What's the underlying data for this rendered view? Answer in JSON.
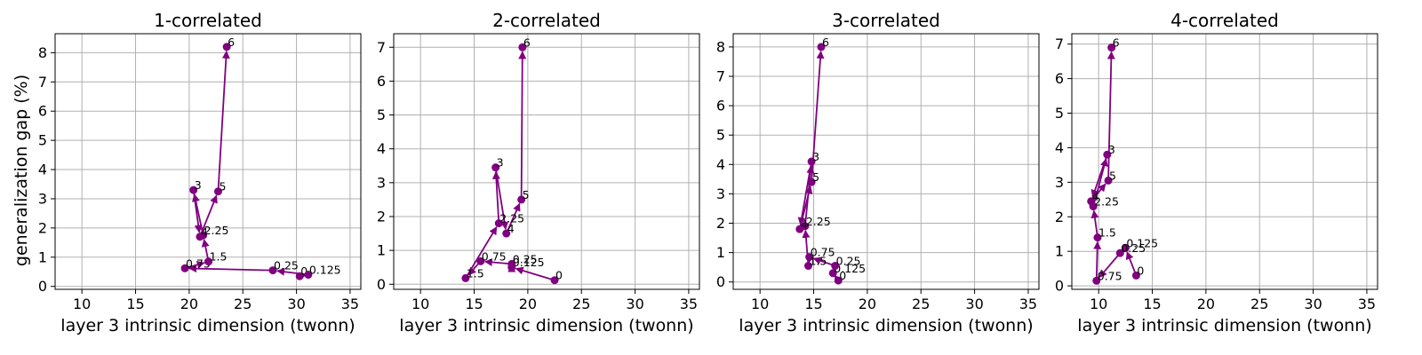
{
  "figure": {
    "ylabel": "generalization gap (%)",
    "xlabel": "layer 3 intrinsic dimension (twonn)"
  },
  "chart_data": [
    {
      "type": "line",
      "title": "1-correlated",
      "xlabel": "layer 3 intrinsic dimension (twonn)",
      "ylabel": "generalization gap (%)",
      "xlim": [
        7.5,
        36
      ],
      "ylim": [
        -0.1,
        8.65
      ],
      "xticks": [
        10,
        15,
        20,
        25,
        30,
        35
      ],
      "yticks": [
        0,
        1,
        2,
        3,
        4,
        5,
        6,
        7,
        8
      ],
      "grid": true,
      "color": "#800080",
      "points": [
        {
          "label": "0",
          "x": 30.3,
          "y": 0.35
        },
        {
          "label": "0.125",
          "x": 31.1,
          "y": 0.4
        },
        {
          "label": "0.25",
          "x": 27.8,
          "y": 0.55
        },
        {
          "label": "0.75",
          "x": 19.6,
          "y": 0.62
        },
        {
          "label": "1.5",
          "x": 21.8,
          "y": 0.85
        },
        {
          "label": "2.25",
          "x": 21.3,
          "y": 1.75
        },
        {
          "label": "3",
          "x": 20.4,
          "y": 3.3
        },
        {
          "label": "4",
          "x": 21.0,
          "y": 1.7
        },
        {
          "label": "5",
          "x": 22.7,
          "y": 3.25
        },
        {
          "label": "6",
          "x": 23.5,
          "y": 8.2
        }
      ]
    },
    {
      "type": "line",
      "title": "2-correlated",
      "xlabel": "layer 3 intrinsic dimension (twonn)",
      "ylabel": "",
      "xlim": [
        7.5,
        36
      ],
      "ylim": [
        -0.15,
        7.4
      ],
      "xticks": [
        10,
        15,
        20,
        25,
        30,
        35
      ],
      "yticks": [
        0,
        1,
        2,
        3,
        4,
        5,
        6,
        7
      ],
      "grid": true,
      "color": "#800080",
      "points": [
        {
          "label": "0",
          "x": 22.5,
          "y": 0.12
        },
        {
          "label": "0.125",
          "x": 18.5,
          "y": 0.5
        },
        {
          "label": "0.25",
          "x": 18.5,
          "y": 0.6
        },
        {
          "label": "0.75",
          "x": 15.6,
          "y": 0.68
        },
        {
          "label": "1.5",
          "x": 14.2,
          "y": 0.18
        },
        {
          "label": "2.25",
          "x": 17.3,
          "y": 1.8
        },
        {
          "label": "3",
          "x": 17.0,
          "y": 3.45
        },
        {
          "label": "4",
          "x": 18.0,
          "y": 1.5
        },
        {
          "label": "5",
          "x": 19.4,
          "y": 2.5
        },
        {
          "label": "6",
          "x": 19.5,
          "y": 7.0
        }
      ]
    },
    {
      "type": "line",
      "title": "3-correlated",
      "xlabel": "layer 3 intrinsic dimension (twonn)",
      "ylabel": "",
      "xlim": [
        7.5,
        36
      ],
      "ylim": [
        -0.25,
        8.45
      ],
      "xticks": [
        10,
        15,
        20,
        25,
        30,
        35
      ],
      "yticks": [
        0,
        1,
        2,
        3,
        4,
        5,
        6,
        7,
        8
      ],
      "grid": true,
      "color": "#800080",
      "points": [
        {
          "label": "0",
          "x": 17.3,
          "y": 0.05
        },
        {
          "label": "0.125",
          "x": 16.8,
          "y": 0.3
        },
        {
          "label": "0.25",
          "x": 17.0,
          "y": 0.55
        },
        {
          "label": "0.75",
          "x": 14.6,
          "y": 0.85
        },
        {
          "label": "1.5",
          "x": 14.5,
          "y": 0.55
        },
        {
          "label": "2.25",
          "x": 14.2,
          "y": 1.9
        },
        {
          "label": "3",
          "x": 14.8,
          "y": 4.1
        },
        {
          "label": "4",
          "x": 13.7,
          "y": 1.8
        },
        {
          "label": "5",
          "x": 14.8,
          "y": 3.4
        },
        {
          "label": "6",
          "x": 15.7,
          "y": 8.0
        }
      ]
    },
    {
      "type": "line",
      "title": "4-correlated",
      "xlabel": "layer 3 intrinsic dimension (twonn)",
      "ylabel": "",
      "xlim": [
        7.5,
        36
      ],
      "ylim": [
        -0.1,
        7.3
      ],
      "xticks": [
        10,
        15,
        20,
        25,
        30,
        35
      ],
      "yticks": [
        0,
        1,
        2,
        3,
        4,
        5,
        6,
        7
      ],
      "grid": true,
      "color": "#800080",
      "points": [
        {
          "label": "0",
          "x": 13.5,
          "y": 0.3
        },
        {
          "label": "0.125",
          "x": 12.5,
          "y": 1.1
        },
        {
          "label": "0.25",
          "x": 12.0,
          "y": 0.95
        },
        {
          "label": "0.75",
          "x": 9.8,
          "y": 0.15
        },
        {
          "label": "1.5",
          "x": 9.9,
          "y": 1.4
        },
        {
          "label": "2.25",
          "x": 9.5,
          "y": 2.3
        },
        {
          "label": "3",
          "x": 10.8,
          "y": 3.8
        },
        {
          "label": "4",
          "x": 9.3,
          "y": 2.45
        },
        {
          "label": "5",
          "x": 10.9,
          "y": 3.05
        },
        {
          "label": "6",
          "x": 11.2,
          "y": 6.9
        }
      ]
    }
  ]
}
